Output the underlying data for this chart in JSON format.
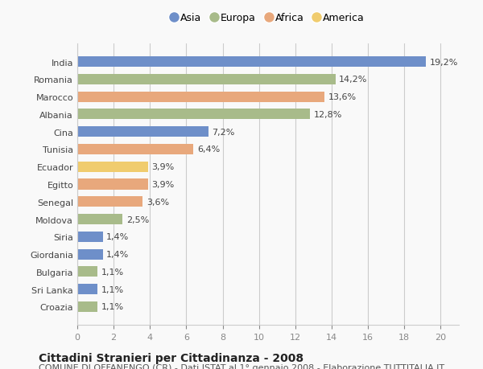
{
  "countries": [
    "India",
    "Romania",
    "Marocco",
    "Albania",
    "Cina",
    "Tunisia",
    "Ecuador",
    "Egitto",
    "Senegal",
    "Moldova",
    "Siria",
    "Giordania",
    "Bulgaria",
    "Sri Lanka",
    "Croazia"
  ],
  "values": [
    19.2,
    14.2,
    13.6,
    12.8,
    7.2,
    6.4,
    3.9,
    3.9,
    3.6,
    2.5,
    1.4,
    1.4,
    1.1,
    1.1,
    1.1
  ],
  "labels": [
    "19,2%",
    "14,2%",
    "13,6%",
    "12,8%",
    "7,2%",
    "6,4%",
    "3,9%",
    "3,9%",
    "3,6%",
    "2,5%",
    "1,4%",
    "1,4%",
    "1,1%",
    "1,1%",
    "1,1%"
  ],
  "continents": [
    "Asia",
    "Europa",
    "Africa",
    "Europa",
    "Asia",
    "Africa",
    "America",
    "Africa",
    "Africa",
    "Europa",
    "Asia",
    "Asia",
    "Europa",
    "Asia",
    "Europa"
  ],
  "colors": {
    "Asia": "#6e8fc9",
    "Europa": "#a8bb8a",
    "Africa": "#e8a87c",
    "America": "#f0cc6e"
  },
  "legend_order": [
    "Asia",
    "Europa",
    "Africa",
    "America"
  ],
  "xlim": [
    0,
    21
  ],
  "xticks": [
    0,
    2,
    4,
    6,
    8,
    10,
    12,
    14,
    16,
    18,
    20
  ],
  "title": "Cittadini Stranieri per Cittadinanza - 2008",
  "subtitle": "COMUNE DI OFFANENGO (CR) - Dati ISTAT al 1° gennaio 2008 - Elaborazione TUTTITALIA.IT",
  "background_color": "#f9f9f9",
  "bar_height": 0.6,
  "grid_color": "#cccccc",
  "title_fontsize": 10,
  "subtitle_fontsize": 8,
  "label_fontsize": 8,
  "tick_fontsize": 8,
  "value_fontsize": 8
}
